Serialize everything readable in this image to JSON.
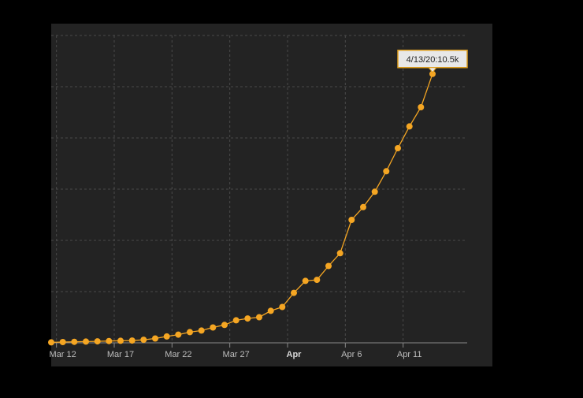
{
  "colors": {
    "page_background": "#000000",
    "plot_background": "#232323",
    "grid": "#4a4a4a",
    "axis": "#8a8a8a",
    "series": "#f5a623",
    "tooltip_fill": "#e8e8e8",
    "tooltip_border": "#e0a020"
  },
  "chart_data": {
    "type": "line",
    "title": "",
    "xlabel": "",
    "ylabel": "",
    "x_axis_type": "date",
    "xlim": [
      "2020-03-11",
      "2020-04-16"
    ],
    "ylim": [
      0,
      12000
    ],
    "y_tick_labels_visible": false,
    "grid": true,
    "grid_style": "dashed",
    "legend": "none",
    "x_ticks": [
      {
        "date": "2020-03-12",
        "label": "Mar 12",
        "bold": false
      },
      {
        "date": "2020-03-17",
        "label": "Mar 17",
        "bold": false
      },
      {
        "date": "2020-03-22",
        "label": "Mar 22",
        "bold": false
      },
      {
        "date": "2020-03-27",
        "label": "Mar 27",
        "bold": false
      },
      {
        "date": "2020-04-01",
        "label": "Apr",
        "bold": true
      },
      {
        "date": "2020-04-06",
        "label": "Apr 6",
        "bold": false
      },
      {
        "date": "2020-04-11",
        "label": "Apr 11",
        "bold": false
      }
    ],
    "y_gridlines": [
      0,
      2000,
      4000,
      6000,
      8000,
      10000,
      12000
    ],
    "series": [
      {
        "color": "#f5a623",
        "marker": "circle",
        "points": [
          {
            "x": "2020-03-11",
            "y": 20
          },
          {
            "x": "2020-03-12",
            "y": 30
          },
          {
            "x": "2020-03-13",
            "y": 40
          },
          {
            "x": "2020-03-14",
            "y": 50
          },
          {
            "x": "2020-03-15",
            "y": 60
          },
          {
            "x": "2020-03-16",
            "y": 70
          },
          {
            "x": "2020-03-17",
            "y": 80
          },
          {
            "x": "2020-03-18",
            "y": 90
          },
          {
            "x": "2020-03-19",
            "y": 120
          },
          {
            "x": "2020-03-20",
            "y": 170
          },
          {
            "x": "2020-03-21",
            "y": 250
          },
          {
            "x": "2020-03-22",
            "y": 320
          },
          {
            "x": "2020-03-23",
            "y": 420
          },
          {
            "x": "2020-03-24",
            "y": 480
          },
          {
            "x": "2020-03-25",
            "y": 600
          },
          {
            "x": "2020-03-26",
            "y": 700
          },
          {
            "x": "2020-03-27",
            "y": 880
          },
          {
            "x": "2020-03-28",
            "y": 950
          },
          {
            "x": "2020-03-29",
            "y": 1000
          },
          {
            "x": "2020-03-30",
            "y": 1250
          },
          {
            "x": "2020-03-31",
            "y": 1400
          },
          {
            "x": "2020-04-01",
            "y": 1950
          },
          {
            "x": "2020-04-02",
            "y": 2420
          },
          {
            "x": "2020-04-03",
            "y": 2460
          },
          {
            "x": "2020-04-04",
            "y": 3000
          },
          {
            "x": "2020-04-05",
            "y": 3500
          },
          {
            "x": "2020-04-06",
            "y": 4800
          },
          {
            "x": "2020-04-07",
            "y": 5300
          },
          {
            "x": "2020-04-08",
            "y": 5900
          },
          {
            "x": "2020-04-09",
            "y": 6700
          },
          {
            "x": "2020-04-10",
            "y": 7600
          },
          {
            "x": "2020-04-11",
            "y": 8450
          },
          {
            "x": "2020-04-12",
            "y": 9200
          },
          {
            "x": "2020-04-13",
            "y": 10500
          }
        ]
      }
    ],
    "tooltip": {
      "label": "4/13/20:10.5k",
      "x": "2020-04-13",
      "y": 10500
    }
  }
}
